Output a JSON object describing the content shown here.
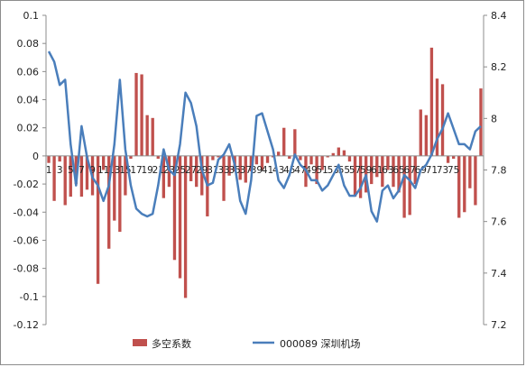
{
  "chart_data": {
    "type": "bar+line",
    "left_axis": {
      "ylim": [
        -0.12,
        0.1
      ],
      "ticks": [
        "0.1",
        "0.08",
        "0.06",
        "0.04",
        "0.02",
        "0",
        "-0.02",
        "-0.04",
        "-0.06",
        "-0.08",
        "-0.1",
        "-0.12"
      ]
    },
    "right_axis": {
      "ylim": [
        7.2,
        8.4
      ],
      "ticks": [
        "8.4",
        "8.2",
        "8",
        "7.8",
        "7.6",
        "7.4",
        "7.2"
      ]
    },
    "x_tick_labels": [
      "1",
      "3",
      "5",
      "7",
      "9",
      "11",
      "13",
      "15",
      "17",
      "19",
      "21",
      "23",
      "25",
      "27",
      "29",
      "31",
      "33",
      "35",
      "37",
      "39",
      "41",
      "43",
      "45",
      "47",
      "49",
      "51",
      "53",
      "55",
      "57",
      "59",
      "61",
      "63",
      "65",
      "67",
      "69",
      "71",
      "73",
      "75"
    ],
    "grid": false,
    "legend_position": "bottom",
    "series": [
      {
        "name": "多空系数",
        "type": "bar",
        "color": "#c0504d",
        "axis": "left",
        "values": [
          -0.005,
          -0.032,
          -0.004,
          -0.035,
          -0.029,
          -0.02,
          -0.029,
          -0.024,
          -0.028,
          -0.091,
          -0.01,
          -0.066,
          -0.046,
          -0.054,
          -0.028,
          -0.002,
          0.059,
          0.058,
          0.029,
          0.027,
          -0.002,
          -0.03,
          -0.022,
          -0.074,
          -0.087,
          -0.101,
          -0.018,
          -0.022,
          -0.028,
          -0.043,
          -0.003,
          -0.001,
          -0.032,
          -0.014,
          -0.011,
          -0.017,
          -0.019,
          -0.011,
          -0.006,
          -0.01,
          -0.005,
          -0.001,
          0.003,
          0.02,
          -0.002,
          0.019,
          -0.003,
          -0.022,
          -0.006,
          -0.02,
          -0.01,
          -0.001,
          0.002,
          0.006,
          0.004,
          -0.004,
          -0.029,
          -0.03,
          -0.026,
          -0.02,
          -0.015,
          -0.022,
          -0.01,
          -0.022,
          -0.026,
          -0.044,
          -0.042,
          -0.02,
          0.033,
          0.029,
          0.077,
          0.055,
          0.051,
          -0.005,
          -0.002,
          -0.044,
          -0.04,
          -0.023,
          -0.035,
          0.048
        ]
      },
      {
        "name": "000089 深圳机场",
        "type": "line",
        "color": "#4a7ebb",
        "axis": "right",
        "values": [
          8.26,
          8.22,
          8.13,
          8.15,
          7.9,
          7.74,
          7.97,
          7.85,
          7.77,
          7.74,
          7.68,
          7.74,
          7.9,
          8.15,
          7.88,
          7.74,
          7.65,
          7.63,
          7.62,
          7.63,
          7.74,
          7.88,
          7.8,
          7.78,
          7.9,
          8.1,
          8.06,
          7.97,
          7.8,
          7.74,
          7.75,
          7.84,
          7.86,
          7.9,
          7.82,
          7.68,
          7.63,
          7.76,
          8.01,
          8.02,
          7.95,
          7.88,
          7.76,
          7.73,
          7.78,
          7.86,
          7.82,
          7.8,
          7.76,
          7.76,
          7.72,
          7.74,
          7.78,
          7.82,
          7.74,
          7.7,
          7.7,
          7.73,
          7.78,
          7.64,
          7.6,
          7.72,
          7.74,
          7.69,
          7.72,
          7.78,
          7.76,
          7.73,
          7.8,
          7.82,
          7.86,
          7.92,
          7.96,
          8.02,
          7.96,
          7.9,
          7.9,
          7.88,
          7.95,
          7.97
        ]
      }
    ]
  }
}
